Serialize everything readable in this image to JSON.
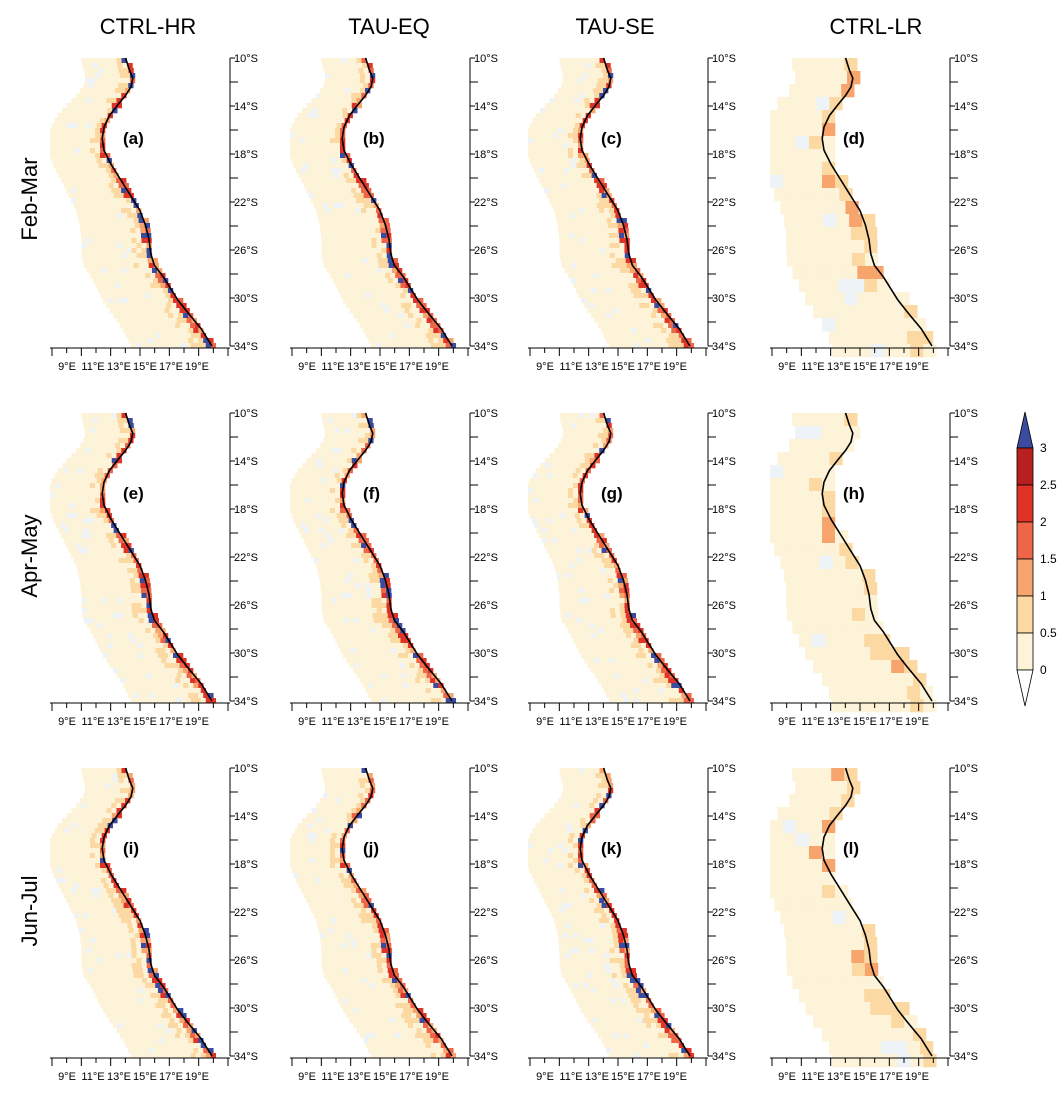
{
  "columns": [
    "CTRL-HR",
    "TAU-EQ",
    "TAU-SE",
    "CTRL-LR"
  ],
  "rows": [
    "Feb-Mar",
    "Apr-May",
    "Jun-Jul"
  ],
  "panel_labels": [
    [
      "(a)",
      "(b)",
      "(c)",
      "(d)"
    ],
    [
      "(e)",
      "(f)",
      "(g)",
      "(h)"
    ],
    [
      "(i)",
      "(j)",
      "(k)",
      "(l)"
    ]
  ],
  "lat_labels": [
    "10°S",
    "14°S",
    "18°S",
    "22°S",
    "26°S",
    "30°S",
    "34°S"
  ],
  "lon_labels": [
    "9°E",
    "11°E",
    "13°E",
    "15°E",
    "17°E",
    "19°E"
  ],
  "colorbar": {
    "tick_labels": [
      "3",
      "2.5",
      "2",
      "1.5",
      "1",
      "0.5",
      "0"
    ],
    "colors": [
      "#fdf3d8",
      "#fcd9a3",
      "#f7a46d",
      "#ee6548",
      "#e03328",
      "#b8201f"
    ],
    "over_color": "#3b4ba0",
    "under_color": "#ffffff"
  },
  "coast_color": "#000000",
  "land_fill": "#ffffff"
}
